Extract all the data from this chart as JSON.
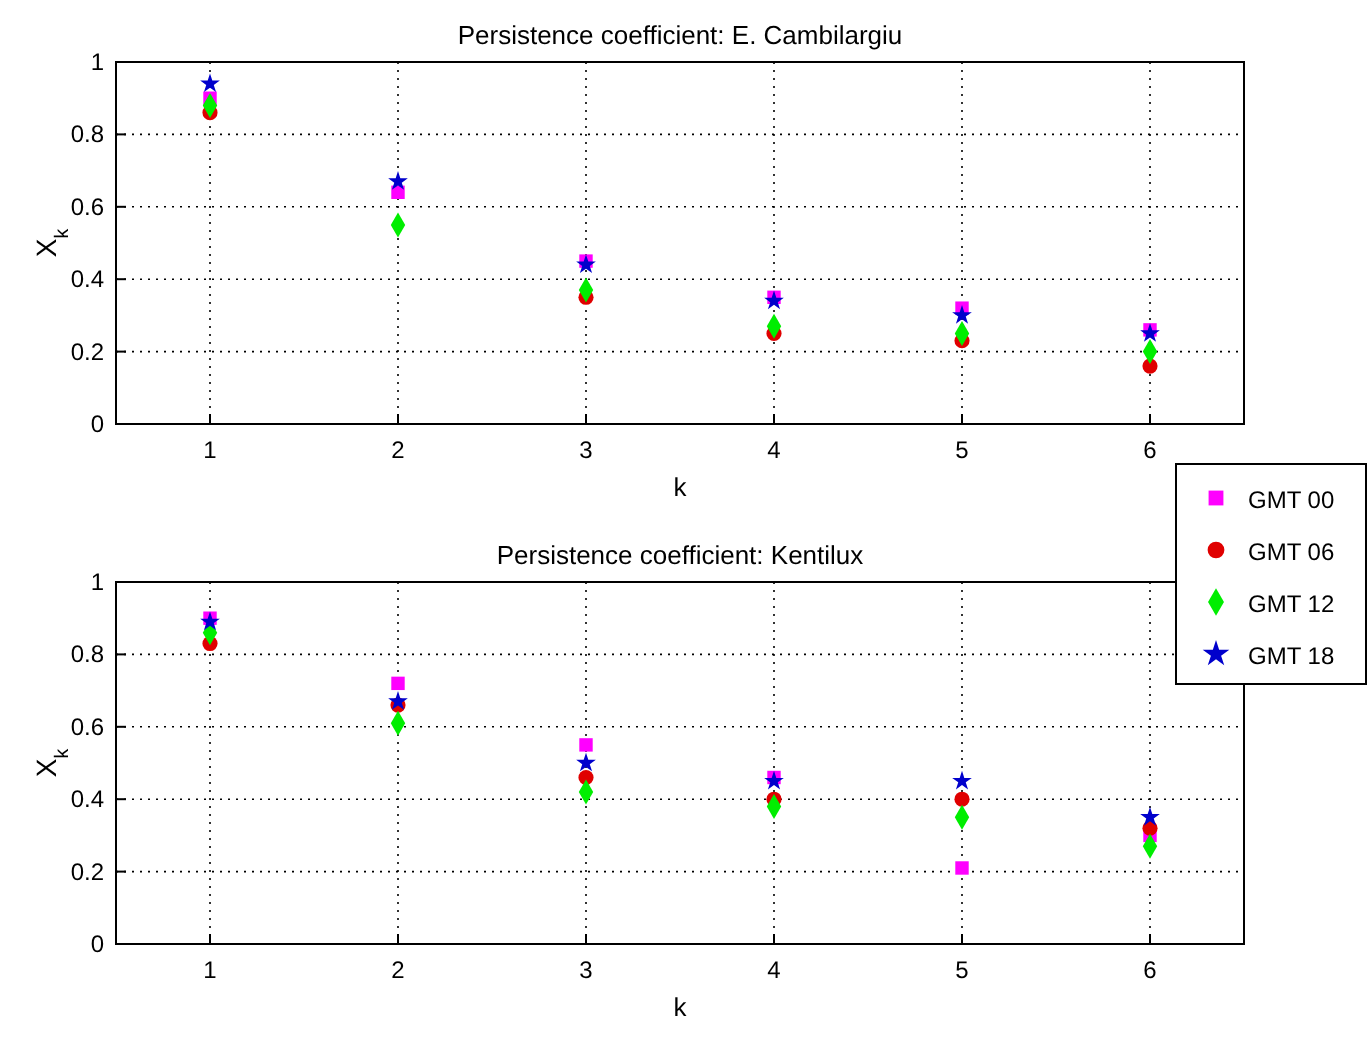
{
  "chart_data": [
    {
      "type": "scatter",
      "title": "Persistence coefficient: E. Cambilargiu",
      "xlabel": "k",
      "ylabel": "X$_{k}$",
      "x": [
        1,
        2,
        3,
        4,
        5,
        6
      ],
      "xlim": [
        0.5,
        6.5
      ],
      "xticks": [
        1,
        2,
        3,
        4,
        5,
        6
      ],
      "ylim": [
        0,
        1
      ],
      "yticks": [
        0,
        0.2,
        0.4,
        0.6,
        0.8,
        1
      ],
      "grid": true,
      "legend": false,
      "series": [
        {
          "color": "#ff00ff",
          "marker": "square",
          "values": [
            0.9,
            0.64,
            0.45,
            0.35,
            0.32,
            0.26
          ]
        },
        {
          "color": "#e00000",
          "marker": "circle",
          "values": [
            0.86,
            null,
            0.35,
            0.25,
            0.23,
            0.16
          ]
        },
        {
          "color": "#00ee00",
          "marker": "diamond",
          "values": [
            0.88,
            0.55,
            0.37,
            0.27,
            0.25,
            0.2
          ]
        },
        {
          "color": "#0000cc",
          "marker": "star",
          "values": [
            0.94,
            0.67,
            0.44,
            0.34,
            0.3,
            0.25
          ]
        }
      ]
    },
    {
      "type": "scatter",
      "title": "Persistence coefficient: Kentilux",
      "xlabel": "k",
      "ylabel": "X$_{k}$",
      "x": [
        1,
        2,
        3,
        4,
        5,
        6
      ],
      "xlim": [
        0.5,
        6.5
      ],
      "xticks": [
        1,
        2,
        3,
        4,
        5,
        6
      ],
      "ylim": [
        0,
        1
      ],
      "yticks": [
        0,
        0.2,
        0.4,
        0.6,
        0.8,
        1
      ],
      "grid": true,
      "legend": "top right",
      "series": [
        {
          "name": "GMT 00",
          "color": "#ff00ff",
          "marker": "square",
          "values": [
            0.9,
            0.72,
            0.55,
            0.46,
            0.21,
            0.3
          ]
        },
        {
          "name": "GMT 06",
          "color": "#e00000",
          "marker": "circle",
          "values": [
            0.83,
            0.66,
            0.46,
            0.4,
            0.4,
            0.32
          ]
        },
        {
          "name": "GMT 12",
          "color": "#00ee00",
          "marker": "diamond",
          "values": [
            0.86,
            0.61,
            0.42,
            0.38,
            0.35,
            0.27
          ]
        },
        {
          "name": "GMT 18",
          "color": "#0000cc",
          "marker": "star",
          "values": [
            0.89,
            0.67,
            0.5,
            0.45,
            0.45,
            0.35
          ]
        }
      ]
    }
  ]
}
